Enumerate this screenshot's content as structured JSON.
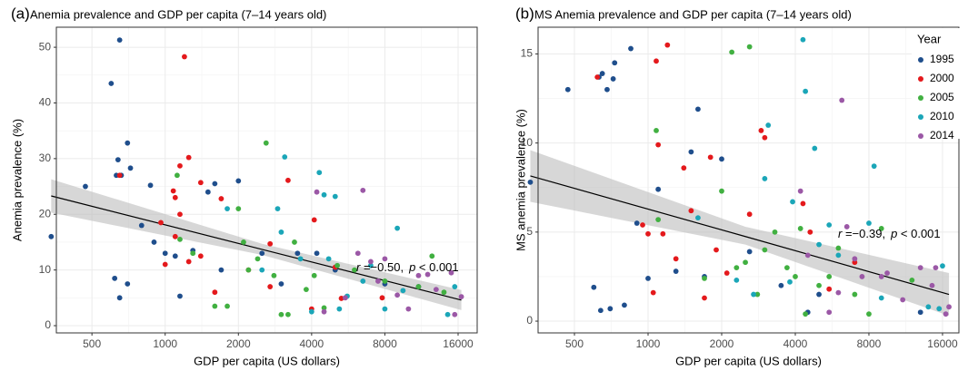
{
  "chart_data": [
    {
      "type": "scatter",
      "panel_label": "(a)",
      "title": "Anemia prevalence and GDP per capita (7–14 years old)",
      "x_label": "GDP per capita (US dollars)",
      "y_label": "Anemia prevalence (%)",
      "xscale": "log",
      "xlim": [
        357,
        19170
      ],
      "xticks": [
        500,
        1000,
        2000,
        4000,
        8000,
        16000
      ],
      "ylim": [
        -1.3,
        53.6
      ],
      "yticks": [
        0,
        10,
        20,
        30,
        40,
        50
      ],
      "grid": true,
      "legend": false,
      "series": [
        {
          "name": "1995",
          "color": "#1f4e8c",
          "x": [
            340,
            470,
            600,
            650,
            640,
            630,
            660,
            700,
            720,
            800,
            620,
            650,
            700,
            870,
            900,
            1000,
            1100,
            1150,
            1300,
            1500,
            1600,
            2000,
            1700,
            2500,
            3000,
            3500,
            4200,
            5000,
            8000,
            11000
          ],
          "values": [
            16,
            25,
            43.5,
            51.3,
            29.8,
            27,
            27,
            32.8,
            28.3,
            18,
            8.5,
            5,
            7.5,
            25.2,
            15,
            13,
            12.5,
            5.3,
            13.5,
            24,
            25.5,
            26,
            10,
            13,
            7.5,
            13,
            13,
            10,
            7.5,
            7
          ]
        },
        {
          "name": "2000",
          "color": "#e4191c",
          "x": [
            650,
            960,
            1080,
            1150,
            1200,
            1250,
            1400,
            1100,
            1150,
            1100,
            1000,
            1250,
            1400,
            1700,
            1600,
            2200,
            2700,
            3200,
            2700,
            4100,
            5000,
            5300,
            7800,
            4000
          ],
          "values": [
            27,
            18.5,
            24.2,
            28.7,
            48.3,
            30.2,
            25.7,
            23,
            20,
            16,
            11,
            11.5,
            12.5,
            22.8,
            6,
            10,
            14.7,
            26.1,
            7,
            19,
            10.5,
            4.9,
            5,
            3
          ]
        },
        {
          "name": "2005",
          "color": "#41b041",
          "x": [
            1120,
            1150,
            1300,
            1600,
            1800,
            2000,
            2100,
            2200,
            2600,
            2400,
            2800,
            3000,
            3200,
            3400,
            3800,
            4100,
            4500,
            5100,
            6000,
            8000,
            11000,
            14000,
            12500
          ],
          "values": [
            27,
            15.5,
            13,
            3.5,
            3.5,
            21,
            15,
            10,
            32.8,
            12,
            9,
            2,
            2,
            15,
            6.5,
            9,
            3.2,
            10.8,
            10,
            8,
            7,
            6,
            12.5
          ]
        },
        {
          "name": "2010",
          "color": "#1ba6b8",
          "x": [
            1800,
            2500,
            2900,
            3100,
            3000,
            3600,
            4000,
            4300,
            4500,
            5000,
            4700,
            5200,
            5600,
            6500,
            7000,
            9000,
            9500,
            8000,
            14500,
            15500
          ],
          "values": [
            21,
            10,
            21,
            30.3,
            16.8,
            12,
            2.5,
            27.5,
            23.5,
            23.2,
            12,
            3,
            5.3,
            8,
            10.8,
            17.5,
            6.3,
            3,
            2,
            7
          ]
        },
        {
          "name": "2014",
          "color": "#9b58a6",
          "x": [
            4200,
            4500,
            5500,
            6500,
            7000,
            7500,
            8000,
            9000,
            10000,
            12000,
            13000,
            15000,
            16500,
            15500,
            11000,
            6200
          ],
          "values": [
            24,
            2.5,
            5,
            24.3,
            11.5,
            8,
            12,
            5.5,
            3,
            9.2,
            6.5,
            9.5,
            5.2,
            2,
            9,
            13
          ]
        }
      ],
      "fit": {
        "x": [
          340,
          2500,
          16500
        ],
        "y": [
          23.3,
          13.7,
          4.6
        ],
        "lower": [
          20.3,
          12.7,
          2.8
        ],
        "upper": [
          26.3,
          14.7,
          6.4
        ]
      },
      "annotation": {
        "r": "r",
        "r_text": " =−0.50,",
        "p": "p",
        "p_text": " < 0.001"
      }
    },
    {
      "type": "scatter",
      "panel_label": "(b)",
      "title": "MS Anemia prevalence and GDP per capita (7–14 years old)",
      "x_label": "GDP per capita (US dollars)",
      "y_label": "MS anemia prevalence (%)",
      "xscale": "log",
      "xlim": [
        355,
        18670
      ],
      "xticks": [
        500,
        1000,
        2000,
        4000,
        8000,
        16000
      ],
      "ylim": [
        -0.66,
        16.5
      ],
      "yticks": [
        0,
        5,
        10,
        15
      ],
      "grid": true,
      "legend": "top-right",
      "legend_title": "Year",
      "series": [
        {
          "name": "1995",
          "color": "#1f4e8c",
          "x": [
            330,
            470,
            600,
            630,
            650,
            680,
            720,
            730,
            640,
            700,
            800,
            850,
            900,
            1000,
            1100,
            1300,
            1500,
            1600,
            1700,
            2000,
            2600,
            3500,
            4500,
            5000,
            13000
          ],
          "values": [
            7.8,
            13,
            1.9,
            13.7,
            13.9,
            13,
            13.6,
            14.5,
            0.6,
            0.7,
            0.9,
            15.3,
            5.5,
            2.4,
            7.4,
            2.8,
            9.5,
            11.9,
            2.5,
            9.1,
            3.9,
            2,
            0.5,
            1.5,
            0.5
          ]
        },
        {
          "name": "2000",
          "color": "#e4191c",
          "x": [
            620,
            950,
            1050,
            1080,
            1100,
            1150,
            1200,
            1300,
            1400,
            1500,
            1700,
            1800,
            1900,
            2100,
            2600,
            2900,
            3000,
            4300,
            4600,
            5500,
            7000,
            1000
          ],
          "values": [
            13.7,
            5.4,
            1.6,
            14.6,
            9.9,
            4.9,
            15.5,
            3.5,
            8.6,
            6.2,
            1.3,
            9.2,
            4,
            2.7,
            6,
            10.7,
            10.3,
            6.6,
            5,
            1.8,
            3.3,
            4.9
          ]
        },
        {
          "name": "2005",
          "color": "#41b041",
          "x": [
            1080,
            1100,
            1700,
            2000,
            2200,
            2300,
            2600,
            2500,
            2800,
            3000,
            3300,
            3700,
            4000,
            4200,
            4400,
            5000,
            5500,
            6000,
            7000,
            8000,
            12000,
            9000
          ],
          "values": [
            10.7,
            5.7,
            2.4,
            7.3,
            15.1,
            3,
            15.4,
            3.3,
            1.5,
            4,
            5,
            3,
            2.5,
            5.2,
            0.4,
            2,
            2.5,
            4.1,
            1.5,
            0.4,
            2.3,
            5.2
          ]
        },
        {
          "name": "2010",
          "color": "#1ba6b8",
          "x": [
            1600,
            2300,
            2700,
            3000,
            3100,
            3800,
            3900,
            4300,
            4400,
            4800,
            5000,
            5500,
            6000,
            8000,
            8400,
            9000,
            14000,
            15500,
            16000
          ],
          "values": [
            5.8,
            2.3,
            1.5,
            8,
            11,
            2.2,
            6.7,
            15.8,
            12.9,
            9.7,
            4.3,
            5.4,
            3.7,
            5.5,
            8.7,
            1.3,
            0.8,
            0.7,
            3.1
          ]
        },
        {
          "name": "2014",
          "color": "#9b58a6",
          "x": [
            4200,
            4500,
            5500,
            6200,
            6500,
            7000,
            7500,
            9500,
            11000,
            13000,
            14500,
            15000,
            16500,
            17000,
            9000,
            6000
          ],
          "values": [
            7.3,
            3.7,
            0.5,
            12.4,
            5.3,
            3.5,
            2.5,
            2.7,
            1.2,
            3,
            2,
            3,
            0.4,
            0.8,
            2.5,
            1.6
          ]
        }
      ],
      "fit": {
        "x": [
          330,
          2500,
          17000
        ],
        "y": [
          8.15,
          4.75,
          1.5
        ],
        "lower": [
          6.7,
          4.3,
          0.3
        ],
        "upper": [
          9.6,
          5.3,
          2.7
        ]
      },
      "annotation": {
        "r": "r",
        "r_text": " =−0.39,",
        "p": "p",
        "p_text": " < 0.001"
      }
    }
  ]
}
